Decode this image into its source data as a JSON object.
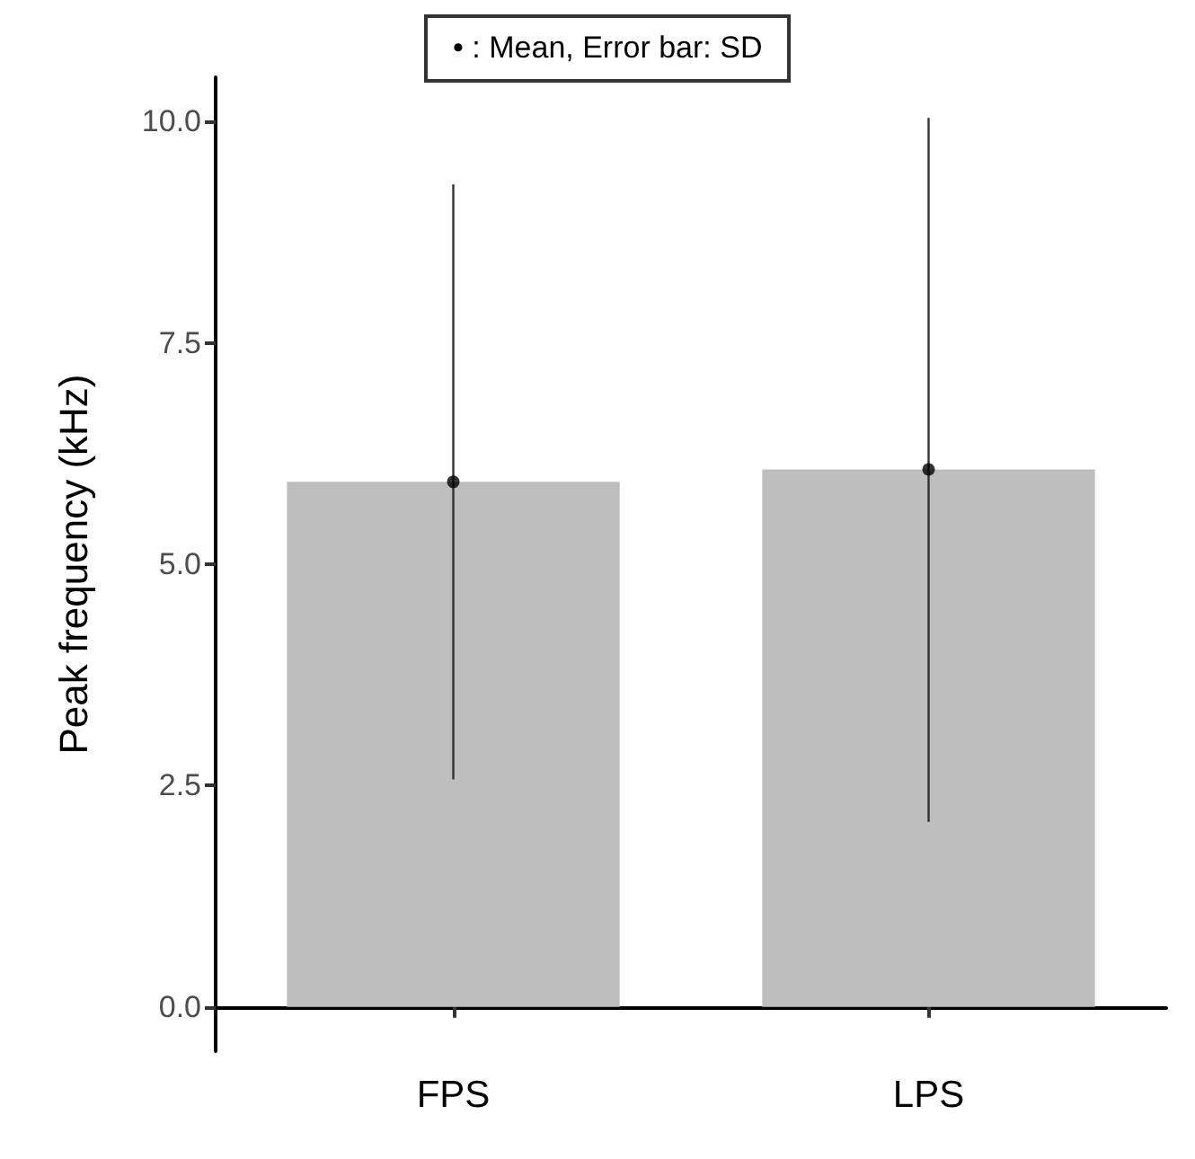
{
  "chart_data": {
    "type": "bar",
    "ylabel": "Peak frequency (kHz)",
    "categories": [
      "FPS",
      "LPS"
    ],
    "series": [
      {
        "color": "#bebebe",
        "values": [
          5.93,
          6.07
        ],
        "errors": [
          [
            2.57,
            9.29
          ],
          [
            2.09,
            10.04
          ]
        ]
      },
      {
        "type": "scatter",
        "color": "#000000",
        "x": [
          "FPS",
          "LPS"
        ],
        "values": [
          5.93,
          6.07
        ],
        "marker": "circle"
      }
    ],
    "ylim": [
      -0.5,
      10.5
    ],
    "yticks": [
      {
        "value": 0,
        "label": "0.0"
      },
      {
        "value": 2.5,
        "label": "2.5"
      },
      {
        "value": 5,
        "label": "5.0"
      },
      {
        "value": 7.5,
        "label": "7.5"
      },
      {
        "value": 10,
        "label": "10.0"
      }
    ],
    "grid": false,
    "annotations": [
      "• : Mean, Error bar: SD"
    ]
  }
}
